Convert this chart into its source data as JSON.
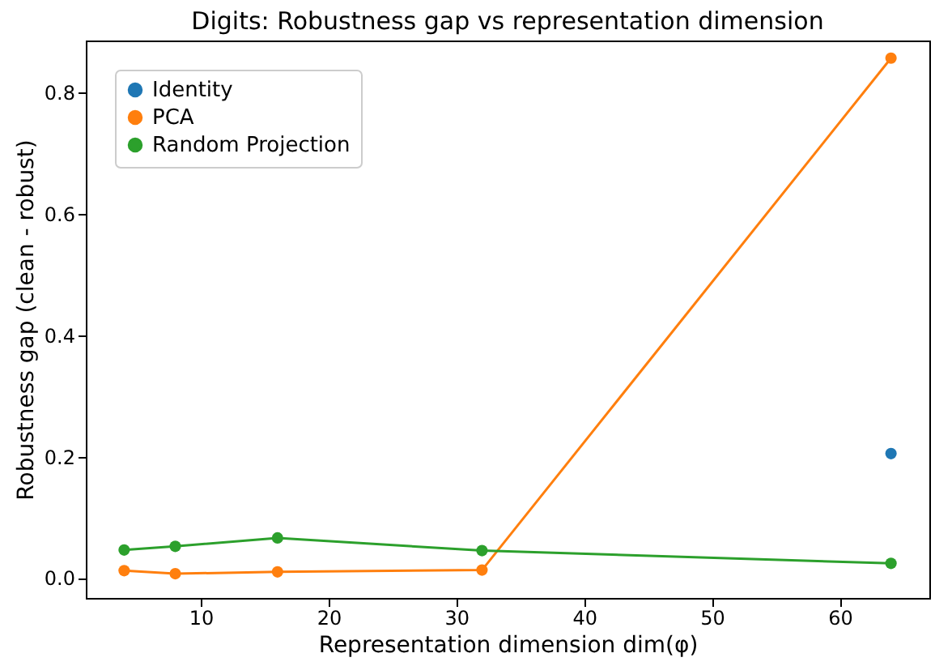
{
  "chart_data": {
    "type": "line",
    "title": "Digits: Robustness gap vs representation dimension",
    "xlabel": "Representation dimension dim(φ)",
    "ylabel": "Robustness gap (clean - robust)",
    "xlim": [
      1,
      67
    ],
    "xticks": [
      10,
      20,
      30,
      40,
      50,
      60
    ],
    "ylim": [
      -0.033,
      0.886
    ],
    "yticks": [
      {
        "value": 0,
        "label": "0.0"
      },
      0.2,
      0.4,
      0.6,
      0.8
    ],
    "marker": "circle",
    "legend": "top left",
    "grid": false,
    "series": [
      {
        "name": "Identity",
        "color": "#1f77b4",
        "x": [
          64
        ],
        "values": [
          0.205
        ]
      },
      {
        "name": "PCA",
        "color": "#ff7f0e",
        "x": [
          4,
          8,
          16,
          32,
          64
        ],
        "values": [
          0.012,
          0.007,
          0.01,
          0.013,
          0.857
        ]
      },
      {
        "name": "Random Projection",
        "color": "#2ca02c",
        "x": [
          4,
          8,
          16,
          32,
          64
        ],
        "values": [
          0.046,
          0.052,
          0.066,
          0.045,
          0.024
        ]
      }
    ]
  }
}
